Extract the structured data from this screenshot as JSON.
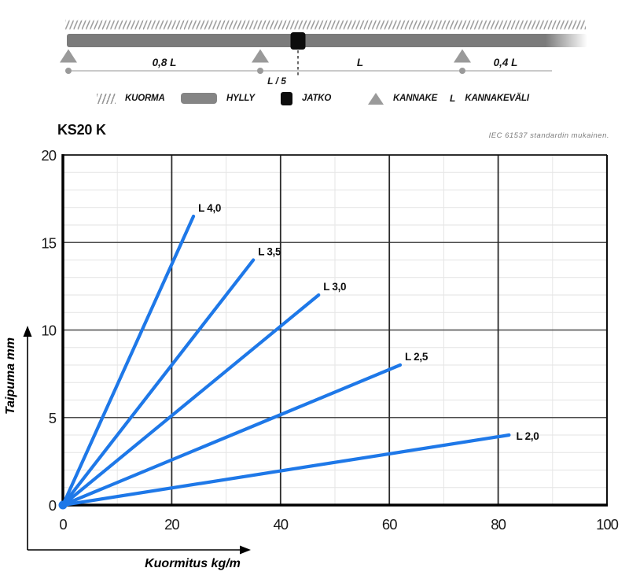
{
  "header": {
    "title": "KS20 K",
    "standard_note": "IEC 61537 standardin mukainen."
  },
  "diagram": {
    "labels": {
      "span_left": "0,8 L",
      "splice_offset": "L / 5",
      "span_mid": "L",
      "span_right": "0,4 L"
    }
  },
  "legend": {
    "items": [
      {
        "label": "KUORMA"
      },
      {
        "label": "HYLLY"
      },
      {
        "label": "JATKO"
      },
      {
        "label": "KANNAKE"
      },
      {
        "symbol": "L",
        "label": "KANNAKEVÄLI"
      }
    ]
  },
  "chart_data": {
    "type": "line",
    "title": "KS20 K",
    "xlabel": "Kuormitus kg/m",
    "ylabel": "Taipuma mm",
    "xlim": [
      0,
      100
    ],
    "ylim": [
      0,
      20
    ],
    "x_ticks": [
      0,
      20,
      40,
      60,
      80,
      100
    ],
    "y_ticks": [
      0,
      5,
      10,
      15,
      20
    ],
    "x_minor_step": 10,
    "y_minor_step": 1,
    "grid": true,
    "legend_position": "inline-end-of-line",
    "line_color": "#1e78e8",
    "series": [
      {
        "name": "L 4,0",
        "points": [
          [
            0,
            0
          ],
          [
            24,
            16.5
          ]
        ]
      },
      {
        "name": "L 3,5",
        "points": [
          [
            0,
            0
          ],
          [
            35,
            14
          ]
        ]
      },
      {
        "name": "L 3,0",
        "points": [
          [
            0,
            0
          ],
          [
            47,
            12
          ]
        ]
      },
      {
        "name": "L 2,5",
        "points": [
          [
            0,
            0
          ],
          [
            62,
            8
          ]
        ]
      },
      {
        "name": "L 2,0",
        "points": [
          [
            0,
            0
          ],
          [
            82,
            4
          ]
        ]
      }
    ]
  }
}
